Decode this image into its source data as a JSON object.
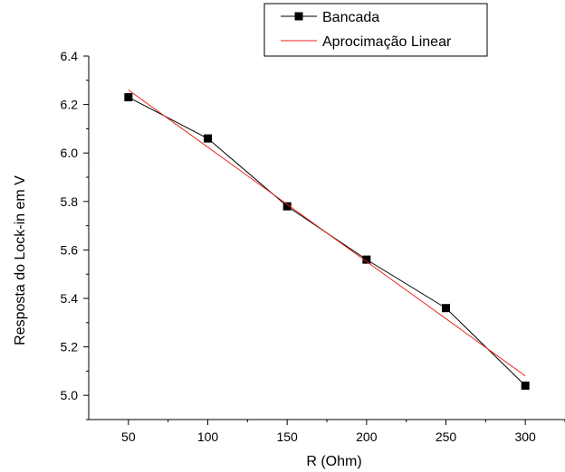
{
  "chart_data": {
    "type": "line",
    "xlabel": "R (Ohm)",
    "ylabel": "Resposta do Lock-in em V",
    "xlim": [
      25,
      325
    ],
    "ylim": [
      4.9,
      6.4
    ],
    "xticks": [
      50,
      100,
      150,
      200,
      250,
      300
    ],
    "xtick_labels": [
      "50",
      "100",
      "150",
      "200",
      "250",
      "300"
    ],
    "yticks": [
      5.0,
      5.2,
      5.4,
      5.6,
      5.8,
      6.0,
      6.2,
      6.4
    ],
    "ytick_labels": [
      "5.0",
      "5.2",
      "5.4",
      "5.6",
      "5.8",
      "6.0",
      "6.2",
      "6.4"
    ],
    "grid": false,
    "legend_position": "top-right",
    "series": [
      {
        "name": "Bancada",
        "color": "#000000",
        "marker": "square",
        "x": [
          50,
          100,
          150,
          200,
          250,
          300
        ],
        "y": [
          6.23,
          6.06,
          5.78,
          5.56,
          5.36,
          5.04
        ]
      },
      {
        "name": "Aprocimação Linear",
        "color": "#e8231c",
        "marker": "none",
        "x": [
          50,
          300
        ],
        "y": [
          6.26,
          5.08
        ]
      }
    ]
  }
}
